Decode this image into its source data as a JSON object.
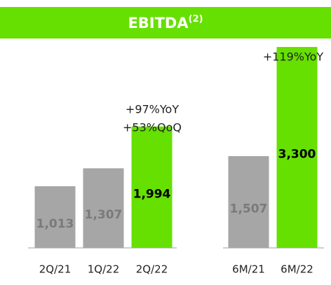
{
  "chart_data": {
    "type": "bar",
    "title": "EBITDA",
    "title_superscript": "(2)",
    "categories": [
      "2Q/21",
      "1Q/22",
      "2Q/22",
      null,
      "6M/21",
      "6M/22"
    ],
    "values": [
      1013,
      1307,
      1994,
      null,
      1507,
      3300
    ],
    "value_labels": [
      "1,013",
      "1,307",
      "1,994",
      null,
      "1,507",
      "3,300"
    ],
    "colors": [
      "#a6a6a6",
      "#a6a6a6",
      "#66e000",
      null,
      "#a6a6a6",
      "#66e000"
    ],
    "ylim": [
      0,
      3600
    ],
    "annotations": [
      "+97%YoY",
      "+53%QoQ",
      "+119%YoY"
    ]
  }
}
